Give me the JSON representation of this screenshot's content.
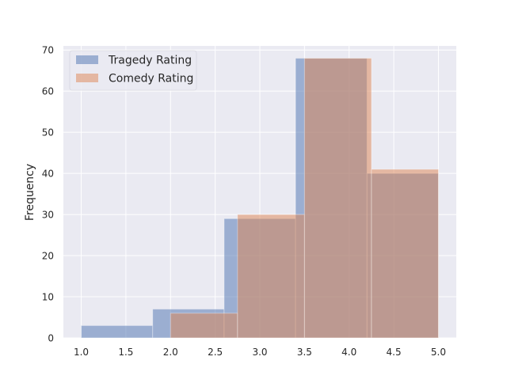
{
  "chart_data": {
    "type": "histogram",
    "title": "",
    "xlabel": "",
    "ylabel": "Frequency",
    "xlim": [
      0.8,
      5.2
    ],
    "ylim": [
      0,
      71
    ],
    "x_ticks": [
      1.0,
      1.5,
      2.0,
      2.5,
      3.0,
      3.5,
      4.0,
      4.5,
      5.0
    ],
    "x_tick_labels": [
      "1.0",
      "1.5",
      "2.0",
      "2.5",
      "3.0",
      "3.5",
      "4.0",
      "4.5",
      "5.0"
    ],
    "y_ticks": [
      0,
      10,
      20,
      30,
      40,
      50,
      60,
      70
    ],
    "y_tick_labels": [
      "0",
      "10",
      "20",
      "30",
      "40",
      "50",
      "60",
      "70"
    ],
    "grid": true,
    "legend_position": "top-left",
    "series": [
      {
        "name": "Tragedy Rating",
        "color": "#4c72b0",
        "opacity": 0.5,
        "bins": [
          {
            "start": 1.0,
            "end": 1.8,
            "count": 3
          },
          {
            "start": 1.8,
            "end": 2.6,
            "count": 7
          },
          {
            "start": 2.6,
            "end": 3.4,
            "count": 29
          },
          {
            "start": 3.4,
            "end": 4.2,
            "count": 68
          },
          {
            "start": 4.2,
            "end": 5.0,
            "count": 40
          }
        ]
      },
      {
        "name": "Comedy Rating",
        "color": "#dd8452",
        "opacity": 0.5,
        "bins": [
          {
            "start": 2.0,
            "end": 2.75,
            "count": 6
          },
          {
            "start": 2.75,
            "end": 3.5,
            "count": 30
          },
          {
            "start": 3.5,
            "end": 4.25,
            "count": 68
          },
          {
            "start": 4.25,
            "end": 5.0,
            "count": 41
          }
        ]
      }
    ]
  }
}
